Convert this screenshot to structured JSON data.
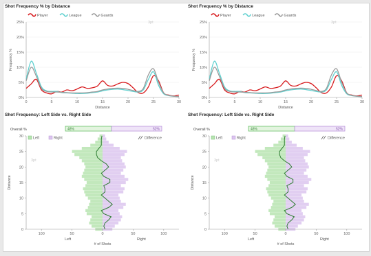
{
  "colors": {
    "player": "#d7191c",
    "league": "#5fd0cf",
    "guards": "#9a9a9a",
    "left": "#b7e4b0",
    "right": "#dcc5ef",
    "left_bar_border": "#56b956",
    "right_bar_border": "#b48ad8",
    "difference": "#2e7d32",
    "watermark": "#c8c8c8"
  },
  "chart_data": [
    {
      "type": "line",
      "title": "Shot Frequency % by Distance",
      "xlabel": "Distance",
      "ylabel": "Frequency %",
      "legend_position": "top-left",
      "xlim": [
        0,
        30
      ],
      "ylim": [
        0,
        25
      ],
      "xticks": [
        "0",
        "5",
        "10",
        "15",
        "20",
        "25",
        "30"
      ],
      "yticks": [
        "0%",
        "5%",
        "10%",
        "15%",
        "20%",
        "25%"
      ],
      "grid": true,
      "faded_label": "3pt",
      "x": [
        0,
        1,
        2,
        3,
        4,
        5,
        6,
        7,
        8,
        9,
        10,
        11,
        12,
        13,
        14,
        15,
        16,
        17,
        18,
        19,
        20,
        21,
        22,
        23,
        24,
        25,
        26,
        27,
        28,
        29,
        30
      ],
      "series": [
        {
          "name": "Player",
          "color_key": "player",
          "values": [
            3,
            4.5,
            6,
            2.5,
            1.5,
            1.2,
            2,
            1.8,
            2.5,
            2.2,
            2.8,
            3.5,
            3,
            3.2,
            3.8,
            5.5,
            4,
            3.8,
            4.5,
            5,
            4.6,
            3.2,
            1.6,
            1.5,
            3.5,
            7.2,
            5.5,
            1.5,
            0.8,
            0.5,
            0.8
          ]
        },
        {
          "name": "League",
          "color_key": "league",
          "values": [
            6,
            12,
            8,
            3.5,
            2.2,
            2,
            2,
            1.6,
            1.5,
            1.4,
            1.3,
            1.3,
            1.4,
            1.6,
            1.8,
            2.2,
            2.5,
            2.7,
            2.8,
            2.6,
            2.3,
            2,
            1.8,
            2.5,
            6,
            8.5,
            4,
            1.2,
            0.6,
            0.4,
            0.3
          ]
        },
        {
          "name": "Guards",
          "color_key": "guards",
          "values": [
            5.5,
            10,
            7,
            3,
            2,
            1.8,
            1.8,
            1.7,
            1.6,
            1.5,
            1.5,
            1.5,
            1.6,
            1.8,
            2,
            2.5,
            2.8,
            3,
            3.1,
            3,
            2.7,
            2.3,
            2,
            3,
            7.5,
            9.5,
            5,
            1.5,
            0.7,
            0.4,
            0.3
          ]
        }
      ]
    },
    {
      "type": "line",
      "title": "Shot Frequency % by Distance",
      "xlabel": "Distance",
      "ylabel": "Frequency %",
      "legend_position": "top-left",
      "xlim": [
        0,
        30
      ],
      "ylim": [
        0,
        25
      ],
      "xticks": [
        "0",
        "5",
        "10",
        "15",
        "20",
        "25",
        "30"
      ],
      "yticks": [
        "0%",
        "5%",
        "10%",
        "15%",
        "20%",
        "25%"
      ],
      "grid": true,
      "faded_label": "3pt",
      "x": [
        0,
        1,
        2,
        3,
        4,
        5,
        6,
        7,
        8,
        9,
        10,
        11,
        12,
        13,
        14,
        15,
        16,
        17,
        18,
        19,
        20,
        21,
        22,
        23,
        24,
        25,
        26,
        27,
        28,
        29,
        30
      ],
      "series": [
        {
          "name": "Player",
          "color_key": "player",
          "values": [
            3,
            4.5,
            6,
            2.5,
            1.5,
            1.2,
            2,
            1.8,
            2.5,
            2.2,
            2.8,
            3.5,
            3,
            3.2,
            3.8,
            5.5,
            4,
            3.8,
            4.5,
            5,
            4.6,
            3.2,
            1.6,
            1.5,
            3.5,
            7.2,
            5.5,
            1.5,
            0.8,
            0.5,
            0.8
          ]
        },
        {
          "name": "League",
          "color_key": "league",
          "values": [
            6,
            12,
            8,
            3.5,
            2.2,
            2,
            2,
            1.6,
            1.5,
            1.4,
            1.3,
            1.3,
            1.4,
            1.6,
            1.8,
            2.2,
            2.5,
            2.7,
            2.8,
            2.6,
            2.3,
            2,
            1.8,
            2.5,
            6,
            8.5,
            4,
            1.2,
            0.6,
            0.4,
            0.3
          ]
        },
        {
          "name": "Guards",
          "color_key": "guards",
          "values": [
            5.5,
            10,
            7,
            3,
            2,
            1.8,
            1.8,
            1.7,
            1.6,
            1.5,
            1.5,
            1.5,
            1.6,
            1.8,
            2,
            2.5,
            2.8,
            3,
            3.1,
            3,
            2.7,
            2.3,
            2,
            3,
            7.5,
            9.5,
            5,
            1.5,
            0.7,
            0.4,
            0.3
          ]
        }
      ]
    },
    {
      "type": "bar",
      "orientation": "horizontal-diverging",
      "title": "Shot Frequency: Left Side vs. Right Side",
      "xlabel": "# of Shots",
      "ylabel": "Distance",
      "overall_label": "Overall %",
      "overall_left_pct": "48%",
      "overall_right_pct": "52%",
      "overall_left_value": 48,
      "legend": [
        "Left",
        "Right",
        "Difference"
      ],
      "side_labels": [
        "Left",
        "Right"
      ],
      "faded_label": "3pt",
      "xlim": [
        -125,
        125
      ],
      "xticks": [
        "100",
        "50",
        "0",
        "50",
        "100"
      ],
      "xtick_values": [
        -100,
        -50,
        0,
        50,
        100
      ],
      "ylim": [
        0,
        30
      ],
      "yticks": [
        "0",
        "5",
        "10",
        "15",
        "20",
        "25",
        "30"
      ],
      "distances": [
        0,
        1,
        2,
        3,
        4,
        5,
        6,
        7,
        8,
        9,
        10,
        11,
        12,
        13,
        14,
        15,
        16,
        17,
        18,
        19,
        20,
        21,
        22,
        23,
        24,
        25,
        26,
        27,
        28,
        29,
        30
      ],
      "left_shots": [
        12,
        18,
        22,
        20,
        18,
        26,
        28,
        24,
        22,
        20,
        24,
        28,
        30,
        32,
        28,
        26,
        30,
        34,
        32,
        30,
        28,
        30,
        34,
        38,
        46,
        50,
        34,
        20,
        12,
        8,
        5
      ],
      "right_shots": [
        16,
        20,
        26,
        30,
        32,
        28,
        26,
        34,
        38,
        30,
        28,
        26,
        34,
        36,
        30,
        38,
        42,
        36,
        30,
        34,
        38,
        36,
        32,
        30,
        36,
        40,
        28,
        18,
        10,
        6,
        4
      ],
      "difference": [
        4,
        2,
        4,
        10,
        14,
        2,
        -2,
        10,
        16,
        10,
        4,
        -2,
        4,
        4,
        2,
        12,
        12,
        2,
        -2,
        4,
        10,
        6,
        -2,
        -8,
        -10,
        -10,
        -6,
        -2,
        -2,
        -2,
        -1
      ]
    },
    {
      "type": "bar",
      "orientation": "horizontal-diverging",
      "title": "Shot Frequency: Left Side vs. Right Side",
      "xlabel": "# of Shots",
      "ylabel": "Distance",
      "overall_label": "Overall %",
      "overall_left_pct": "48%",
      "overall_right_pct": "52%",
      "overall_left_value": 48,
      "legend": [
        "Left",
        "Right",
        "Difference"
      ],
      "side_labels": [
        "Left",
        "Right"
      ],
      "faded_label": "3pt",
      "xlim": [
        -125,
        125
      ],
      "xticks": [
        "100",
        "50",
        "0",
        "50",
        "100"
      ],
      "xtick_values": [
        -100,
        -50,
        0,
        50,
        100
      ],
      "ylim": [
        0,
        30
      ],
      "yticks": [
        "0",
        "5",
        "10",
        "15",
        "20",
        "25",
        "30"
      ],
      "distances": [
        0,
        1,
        2,
        3,
        4,
        5,
        6,
        7,
        8,
        9,
        10,
        11,
        12,
        13,
        14,
        15,
        16,
        17,
        18,
        19,
        20,
        21,
        22,
        23,
        24,
        25,
        26,
        27,
        28,
        29,
        30
      ],
      "left_shots": [
        12,
        18,
        22,
        20,
        18,
        26,
        28,
        24,
        22,
        20,
        24,
        28,
        30,
        32,
        28,
        26,
        30,
        34,
        32,
        30,
        28,
        30,
        34,
        38,
        46,
        50,
        34,
        20,
        12,
        8,
        5
      ],
      "right_shots": [
        16,
        20,
        26,
        30,
        32,
        28,
        26,
        34,
        38,
        30,
        28,
        26,
        34,
        36,
        30,
        38,
        42,
        36,
        30,
        34,
        38,
        36,
        32,
        30,
        36,
        40,
        28,
        18,
        10,
        6,
        4
      ],
      "difference": [
        4,
        2,
        4,
        10,
        14,
        2,
        -2,
        10,
        16,
        10,
        4,
        -2,
        4,
        4,
        2,
        12,
        12,
        2,
        -2,
        4,
        10,
        6,
        -2,
        -8,
        -10,
        -10,
        -6,
        -2,
        -2,
        -2,
        -1
      ]
    }
  ]
}
